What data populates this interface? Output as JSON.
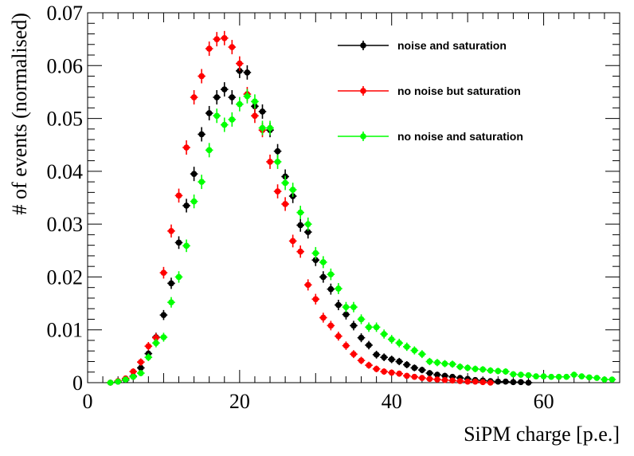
{
  "chart_data": {
    "type": "scatter",
    "xlabel": "SiPM charge [p.e.]",
    "ylabel": "# of events (normalised)",
    "xlim": [
      0,
      70
    ],
    "ylim": [
      0,
      0.07
    ],
    "xticks": [
      0,
      20,
      40,
      60
    ],
    "yticks": [
      0,
      0.01,
      0.02,
      0.03,
      0.04,
      0.05,
      0.06,
      0.07
    ],
    "xtick_labels": [
      "0",
      "20",
      "40",
      "60"
    ],
    "ytick_labels": [
      "0",
      "0.01",
      "0.02",
      "0.03",
      "0.04",
      "0.05",
      "0.06",
      "0.07"
    ],
    "grid": false,
    "legend_position": "top-right",
    "series": [
      {
        "name": "noise and saturation",
        "color": "#000000",
        "x": [
          3,
          4,
          5,
          6,
          7,
          8,
          9,
          10,
          11,
          12,
          13,
          14,
          15,
          16,
          17,
          18,
          19,
          20,
          21,
          22,
          23,
          24,
          25,
          26,
          27,
          28,
          29,
          30,
          31,
          32,
          33,
          34,
          35,
          36,
          37,
          38,
          39,
          40,
          41,
          42,
          43,
          44,
          45,
          46,
          47,
          48,
          49,
          50,
          51,
          52,
          53,
          54,
          55,
          56,
          57,
          58
        ],
        "y": [
          0,
          0.0002,
          0.0005,
          0.0012,
          0.0028,
          0.0055,
          0.0086,
          0.0128,
          0.0188,
          0.0265,
          0.0335,
          0.0395,
          0.047,
          0.051,
          0.054,
          0.0555,
          0.054,
          0.059,
          0.0587,
          0.0523,
          0.0513,
          0.0478,
          0.0438,
          0.039,
          0.0353,
          0.0298,
          0.0285,
          0.0232,
          0.02,
          0.0177,
          0.0147,
          0.0129,
          0.0108,
          0.0085,
          0.0071,
          0.0053,
          0.0048,
          0.0044,
          0.004,
          0.0034,
          0.0028,
          0.0024,
          0.0018,
          0.0015,
          0.0013,
          0.0011,
          0.0009,
          0.0007,
          0.0005,
          0.0004,
          0.0003,
          0.0002,
          0.0002,
          0.0001,
          0.0001,
          0
        ]
      },
      {
        "name": "no noise but saturation",
        "color": "#ff0000",
        "x": [
          3,
          4,
          5,
          6,
          7,
          8,
          9,
          10,
          11,
          12,
          13,
          14,
          15,
          16,
          17,
          18,
          19,
          20,
          21,
          22,
          23,
          24,
          25,
          26,
          27,
          28,
          29,
          30,
          31,
          32,
          33,
          34,
          35,
          36,
          37,
          38,
          39,
          40,
          41,
          42,
          43,
          44,
          45,
          46,
          47,
          48,
          49,
          50,
          51,
          52,
          53
        ],
        "y": [
          0,
          0.0003,
          0.0008,
          0.0021,
          0.0039,
          0.0069,
          0.0085,
          0.0208,
          0.0287,
          0.0354,
          0.0445,
          0.054,
          0.058,
          0.0632,
          0.065,
          0.0652,
          0.0635,
          0.0604,
          0.0546,
          0.0505,
          0.0478,
          0.0418,
          0.0362,
          0.0338,
          0.0268,
          0.0248,
          0.0185,
          0.0158,
          0.0123,
          0.0108,
          0.0088,
          0.007,
          0.0054,
          0.0042,
          0.0033,
          0.0026,
          0.0021,
          0.0019,
          0.0017,
          0.0013,
          0.0011,
          0.0009,
          0.0007,
          0.0006,
          0.0005,
          0.0004,
          0.0003,
          0.0002,
          0.0002,
          0.0001,
          0
        ]
      },
      {
        "name": "no noise and saturation",
        "color": "#00ff00",
        "x": [
          3,
          4,
          5,
          6,
          7,
          8,
          9,
          10,
          11,
          12,
          13,
          14,
          15,
          16,
          17,
          18,
          19,
          20,
          21,
          22,
          23,
          24,
          25,
          26,
          27,
          28,
          29,
          30,
          31,
          32,
          33,
          34,
          35,
          36,
          37,
          38,
          39,
          40,
          41,
          42,
          43,
          44,
          45,
          46,
          47,
          48,
          49,
          50,
          51,
          52,
          53,
          54,
          55,
          56,
          57,
          58,
          59,
          60,
          61,
          62,
          63,
          64,
          65,
          66,
          67,
          68,
          69
        ],
        "y": [
          0,
          0.0002,
          0.0006,
          0.0011,
          0.0018,
          0.0048,
          0.0075,
          0.0086,
          0.0152,
          0.02,
          0.0259,
          0.0343,
          0.038,
          0.044,
          0.0505,
          0.0488,
          0.0498,
          0.0527,
          0.0542,
          0.0532,
          0.0482,
          0.0482,
          0.0418,
          0.0378,
          0.0365,
          0.0322,
          0.03,
          0.0245,
          0.0228,
          0.0205,
          0.0178,
          0.0143,
          0.0143,
          0.012,
          0.0105,
          0.0105,
          0.0092,
          0.0082,
          0.0075,
          0.0068,
          0.0061,
          0.0054,
          0.004,
          0.0038,
          0.0036,
          0.0035,
          0.003,
          0.0028,
          0.0026,
          0.0025,
          0.0023,
          0.0022,
          0.0021,
          0.0016,
          0.0015,
          0.0014,
          0.0012,
          0.0012,
          0.0011,
          0.0011,
          0.0011,
          0.0015,
          0.0012,
          0.001,
          0.0009,
          0.0006,
          0.0006
        ]
      }
    ]
  }
}
